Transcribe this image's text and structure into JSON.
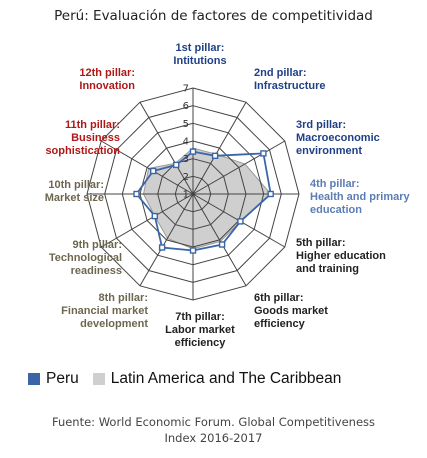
{
  "title": "Perú: Evaluación de factores de competitividad",
  "source_line1": "Fuente: World Economic Forum. Global Competitiveness",
  "source_line2": "Index 2016-2017",
  "colors": {
    "peru": "#3a66a8",
    "latam_fill": "#cfcfcf",
    "latam_stroke": "#9a9a9a",
    "grid": "#444444",
    "label_blue": "#1f3f86",
    "label_red": "#b01818",
    "label_olive": "#6e6750",
    "label_light_blue": "#5b7db5",
    "label_dark": "#222222"
  },
  "chart_data": {
    "type": "radar",
    "title": "Perú: Evaluación de factores de competitividad",
    "axis_range": [
      1,
      7
    ],
    "ticks": [
      "1",
      "2",
      "3",
      "4",
      "5",
      "6",
      "7"
    ],
    "axes": [
      {
        "name": "1st pillar:\nIntitutions",
        "color": "#1f3f86"
      },
      {
        "name": "2nd pillar:\nInfrastructure",
        "color": "#1f3f86"
      },
      {
        "name": "3rd pillar:\nMacroeconomic\nenvironment",
        "color": "#1f3f86"
      },
      {
        "name": "4th pillar:\nHealth and primary\neducation",
        "color": "#5b7db5"
      },
      {
        "name": "5th pillar:\nHigher education\nand training",
        "color": "#222222"
      },
      {
        "name": "6th pillar:\nGoods market\nefficiency",
        "color": "#222222"
      },
      {
        "name": "7th pillar:\nLabor market\nefficiency",
        "color": "#222222"
      },
      {
        "name": "8th pillar:\nFinancial market\ndevelopment",
        "color": "#6e6750"
      },
      {
        "name": "9th pillar:\nTechnological\nreadiness",
        "color": "#6e6750"
      },
      {
        "name": "10th pillar:\nMarket size",
        "color": "#6e6750"
      },
      {
        "name": "11th pillar:\nBusiness\nsophistication",
        "color": "#b01818"
      },
      {
        "name": "12th pillar:\nInnovation",
        "color": "#b01818"
      }
    ],
    "series": [
      {
        "name": "Latin America and The Caribbean",
        "values": [
          3.6,
          3.6,
          4.4,
          5.4,
          4.1,
          4.1,
          4.1,
          3.9,
          3.5,
          3.8,
          3.9,
          3.0
        ]
      },
      {
        "name": "Peru",
        "values": [
          3.4,
          3.5,
          5.6,
          5.4,
          4.1,
          4.3,
          4.2,
          4.5,
          3.5,
          4.2,
          3.6,
          2.9
        ]
      }
    ],
    "legend": "bottom",
    "grid": true
  }
}
